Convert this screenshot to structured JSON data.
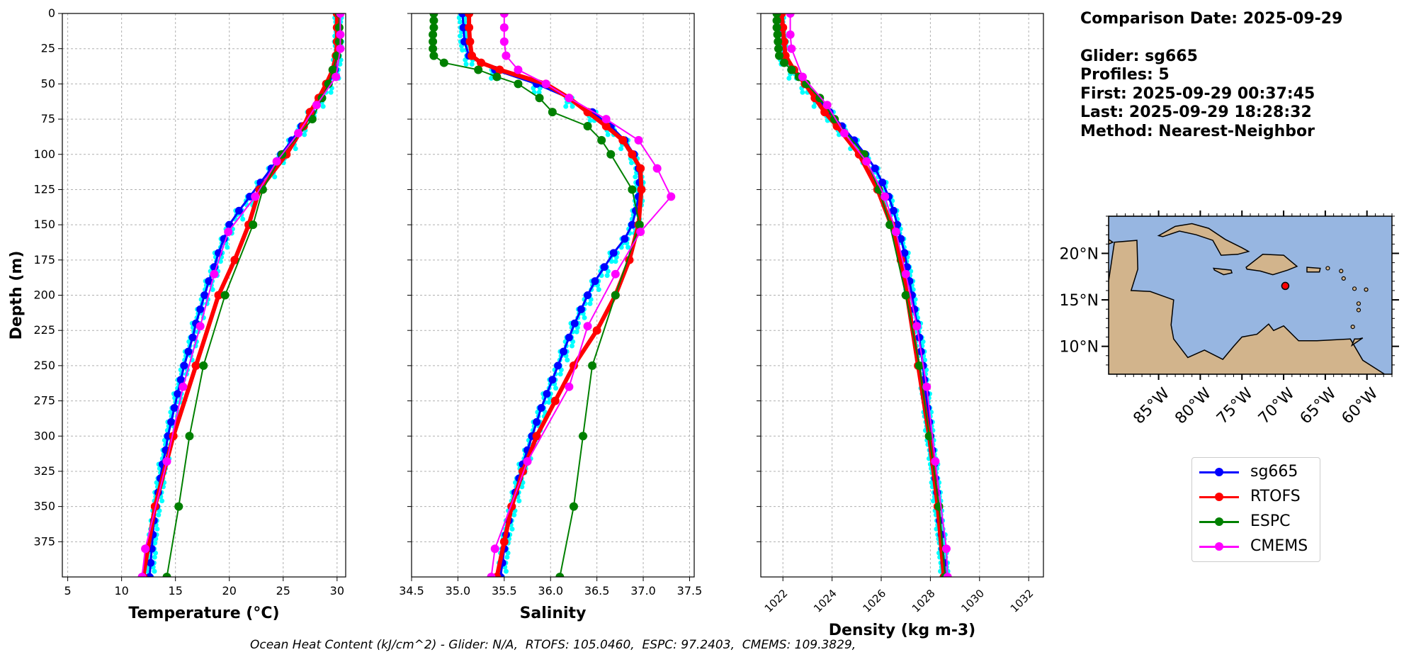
{
  "info": {
    "comparison": "Comparison Date: 2025-09-29",
    "glider": "Glider: sg665",
    "profiles": "Profiles: 5",
    "first": "First: 2025-09-29 00:37:45",
    "last": "Last: 2025-09-29 18:28:32",
    "method": "Method: Nearest-Neighbor"
  },
  "footer": "Ocean Heat Content (kJ/cm^2) - Glider: N/A,  RTOFS: 105.0460,  ESPC: 97.2403,  CMEMS: 109.3829,",
  "colors": {
    "sg665": "#0000ff",
    "sg665_raw": "#00ffff",
    "RTOFS": "#ff0000",
    "ESPC": "#008000",
    "CMEMS": "#ff00ff",
    "ocean": "#97b6e1",
    "land": "#d2b48c"
  },
  "legend": [
    {
      "label": "sg665",
      "color": "#0000ff"
    },
    {
      "label": "RTOFS",
      "color": "#ff0000"
    },
    {
      "label": "ESPC",
      "color": "#008000"
    },
    {
      "label": "CMEMS",
      "color": "#ff00ff"
    }
  ],
  "map": {
    "lat_ticks": [
      "20°N",
      "15°N",
      "10°N"
    ],
    "lon_ticks": [
      "85°W",
      "80°W",
      "75°W",
      "70°W",
      "65°W",
      "60°W"
    ],
    "glider_position": {
      "lon": -69.8,
      "lat": 16.5
    }
  },
  "chart_data": [
    {
      "type": "line",
      "xlabel": "Temperature (°C)",
      "ylabel": "Depth (m)",
      "xlim": [
        4.5,
        30.8
      ],
      "ylim": [
        400,
        0
      ],
      "xticks": [
        5,
        10,
        15,
        20,
        25,
        30
      ],
      "yticks": [
        0,
        25,
        50,
        75,
        100,
        125,
        150,
        175,
        200,
        225,
        250,
        275,
        300,
        325,
        350,
        375
      ],
      "grid": true,
      "series": [
        {
          "name": "sg665",
          "depth": [
            0,
            10,
            20,
            30,
            40,
            50,
            60,
            70,
            80,
            90,
            100,
            110,
            120,
            130,
            140,
            150,
            160,
            170,
            180,
            190,
            200,
            210,
            220,
            230,
            240,
            250,
            260,
            270,
            280,
            290,
            300,
            310,
            320,
            330,
            340,
            350,
            360,
            370,
            380,
            390,
            400
          ],
          "values": [
            30.1,
            30.1,
            30.1,
            30.0,
            29.8,
            29.2,
            28.4,
            27.6,
            26.7,
            25.8,
            24.8,
            23.9,
            22.9,
            21.9,
            20.9,
            20.0,
            19.5,
            19.0,
            18.6,
            18.1,
            17.7,
            17.3,
            16.9,
            16.6,
            16.2,
            15.8,
            15.5,
            15.2,
            14.9,
            14.6,
            14.3,
            14.1,
            13.8,
            13.6,
            13.4,
            13.2,
            13.0,
            12.9,
            12.8,
            12.7,
            12.6
          ]
        },
        {
          "name": "RTOFS",
          "depth": [
            0,
            10,
            20,
            30,
            40,
            50,
            60,
            70,
            80,
            100,
            125,
            150,
            175,
            200,
            250,
            300,
            350,
            400
          ],
          "values": [
            30.0,
            30.0,
            30.0,
            29.9,
            29.6,
            29.0,
            28.3,
            27.5,
            26.9,
            25.3,
            22.8,
            21.8,
            20.5,
            19.0,
            16.9,
            14.8,
            13.1,
            12.0
          ]
        },
        {
          "name": "ESPC",
          "depth": [
            0,
            10,
            20,
            30,
            40,
            50,
            60,
            75,
            100,
            125,
            150,
            200,
            250,
            300,
            350,
            400
          ],
          "values": [
            30.2,
            30.2,
            30.2,
            30.0,
            29.6,
            29.2,
            28.6,
            27.7,
            24.9,
            23.1,
            22.2,
            19.6,
            17.6,
            16.3,
            15.3,
            14.2
          ]
        },
        {
          "name": "CMEMS",
          "depth": [
            0,
            15,
            25,
            45,
            65,
            85,
            105,
            130,
            155,
            185,
            222,
            265,
            318,
            380,
            400
          ],
          "values": [
            30.3,
            30.3,
            30.3,
            29.9,
            28.1,
            26.4,
            24.4,
            22.4,
            19.9,
            18.6,
            17.3,
            15.7,
            14.2,
            12.2,
            11.9
          ]
        }
      ]
    },
    {
      "type": "line",
      "xlabel": "Salinity",
      "ylabel": "",
      "xlim": [
        34.5,
        37.55
      ],
      "ylim": [
        400,
        0
      ],
      "xticks": [
        34.5,
        35.0,
        35.5,
        36.0,
        36.5,
        37.0,
        37.5
      ],
      "grid": true,
      "series": [
        {
          "name": "sg665",
          "depth": [
            0,
            10,
            20,
            30,
            40,
            50,
            60,
            70,
            80,
            90,
            100,
            110,
            120,
            130,
            140,
            150,
            160,
            170,
            180,
            190,
            200,
            210,
            220,
            230,
            240,
            250,
            260,
            270,
            280,
            290,
            300,
            310,
            320,
            330,
            340,
            350,
            360,
            370,
            380,
            390,
            400
          ],
          "values": [
            35.05,
            35.06,
            35.07,
            35.12,
            35.4,
            35.85,
            36.2,
            36.45,
            36.65,
            36.8,
            36.9,
            36.95,
            36.96,
            36.95,
            36.92,
            36.88,
            36.8,
            36.68,
            36.58,
            36.48,
            36.4,
            36.33,
            36.26,
            36.2,
            36.14,
            36.08,
            36.02,
            35.96,
            35.9,
            35.85,
            35.8,
            35.75,
            35.7,
            35.66,
            35.62,
            35.58,
            35.55,
            35.52,
            35.5,
            35.48,
            35.46
          ]
        },
        {
          "name": "RTOFS",
          "depth": [
            0,
            10,
            20,
            30,
            35,
            40,
            50,
            60,
            70,
            80,
            90,
            100,
            110,
            125,
            150,
            175,
            200,
            225,
            250,
            275,
            300,
            325,
            350,
            375,
            400
          ],
          "values": [
            35.12,
            35.12,
            35.13,
            35.15,
            35.25,
            35.45,
            35.95,
            36.2,
            36.4,
            36.6,
            36.78,
            36.88,
            36.97,
            36.98,
            36.95,
            36.85,
            36.7,
            36.5,
            36.25,
            36.05,
            35.85,
            35.7,
            35.58,
            35.5,
            35.42
          ]
        },
        {
          "name": "ESPC",
          "depth": [
            0,
            5,
            10,
            15,
            20,
            25,
            30,
            35,
            40,
            45,
            50,
            60,
            70,
            80,
            90,
            100,
            125,
            150,
            200,
            250,
            300,
            350,
            400
          ],
          "values": [
            34.74,
            34.74,
            34.74,
            34.73,
            34.73,
            34.73,
            34.74,
            34.85,
            35.22,
            35.42,
            35.65,
            35.88,
            36.02,
            36.4,
            36.55,
            36.65,
            36.88,
            36.96,
            36.7,
            36.45,
            36.35,
            36.25,
            36.1
          ]
        },
        {
          "name": "CMEMS",
          "depth": [
            0,
            10,
            20,
            30,
            40,
            50,
            60,
            75,
            90,
            110,
            130,
            155,
            185,
            222,
            265,
            318,
            380,
            400
          ],
          "values": [
            35.5,
            35.5,
            35.5,
            35.52,
            35.65,
            35.95,
            36.2,
            36.6,
            36.95,
            37.15,
            37.3,
            36.97,
            36.7,
            36.4,
            36.2,
            35.75,
            35.4,
            35.36
          ]
        }
      ]
    },
    {
      "type": "line",
      "xlabel": "Density (kg m-3)",
      "ylabel": "",
      "xlim": [
        1021.1,
        1032.6
      ],
      "ylim": [
        400,
        0
      ],
      "xticks": [
        1022,
        1024,
        1026,
        1028,
        1030,
        1032
      ],
      "grid": true,
      "series": [
        {
          "name": "sg665",
          "depth": [
            0,
            10,
            20,
            30,
            40,
            50,
            60,
            70,
            80,
            90,
            100,
            110,
            120,
            130,
            140,
            150,
            160,
            170,
            180,
            190,
            200,
            210,
            220,
            230,
            240,
            250,
            260,
            270,
            280,
            290,
            300,
            310,
            320,
            330,
            340,
            350,
            360,
            370,
            380,
            390,
            400
          ],
          "values": [
            1021.9,
            1021.95,
            1022.0,
            1022.05,
            1022.4,
            1022.9,
            1023.4,
            1023.9,
            1024.4,
            1024.9,
            1025.35,
            1025.75,
            1026.05,
            1026.3,
            1026.5,
            1026.65,
            1026.8,
            1026.95,
            1027.05,
            1027.15,
            1027.25,
            1027.35,
            1027.45,
            1027.55,
            1027.62,
            1027.7,
            1027.75,
            1027.82,
            1027.88,
            1027.95,
            1028.0,
            1028.08,
            1028.15,
            1028.2,
            1028.27,
            1028.33,
            1028.38,
            1028.45,
            1028.5,
            1028.56,
            1028.62
          ]
        },
        {
          "name": "RTOFS",
          "depth": [
            0,
            10,
            20,
            30,
            40,
            50,
            60,
            70,
            80,
            100,
            125,
            150,
            175,
            200,
            250,
            300,
            350,
            400
          ],
          "values": [
            1021.95,
            1022.0,
            1022.05,
            1022.1,
            1022.45,
            1022.9,
            1023.3,
            1023.7,
            1024.2,
            1025.1,
            1025.85,
            1026.4,
            1026.8,
            1027.05,
            1027.5,
            1027.95,
            1028.3,
            1028.55
          ]
        },
        {
          "name": "ESPC",
          "depth": [
            0,
            5,
            10,
            15,
            20,
            25,
            30,
            35,
            40,
            45,
            50,
            60,
            75,
            100,
            125,
            150,
            200,
            250,
            300,
            350,
            400
          ],
          "values": [
            1021.75,
            1021.75,
            1021.75,
            1021.78,
            1021.8,
            1021.82,
            1021.85,
            1022.05,
            1022.35,
            1022.65,
            1022.95,
            1023.5,
            1024.1,
            1025.3,
            1025.9,
            1026.35,
            1027.0,
            1027.55,
            1027.95,
            1028.35,
            1028.6
          ]
        },
        {
          "name": "CMEMS",
          "depth": [
            0,
            15,
            25,
            45,
            65,
            85,
            105,
            130,
            155,
            185,
            222,
            265,
            318,
            380,
            400
          ],
          "values": [
            1022.3,
            1022.3,
            1022.35,
            1022.8,
            1023.8,
            1024.5,
            1025.4,
            1026.15,
            1026.6,
            1027.0,
            1027.45,
            1027.85,
            1028.2,
            1028.65,
            1028.7
          ]
        }
      ]
    }
  ]
}
